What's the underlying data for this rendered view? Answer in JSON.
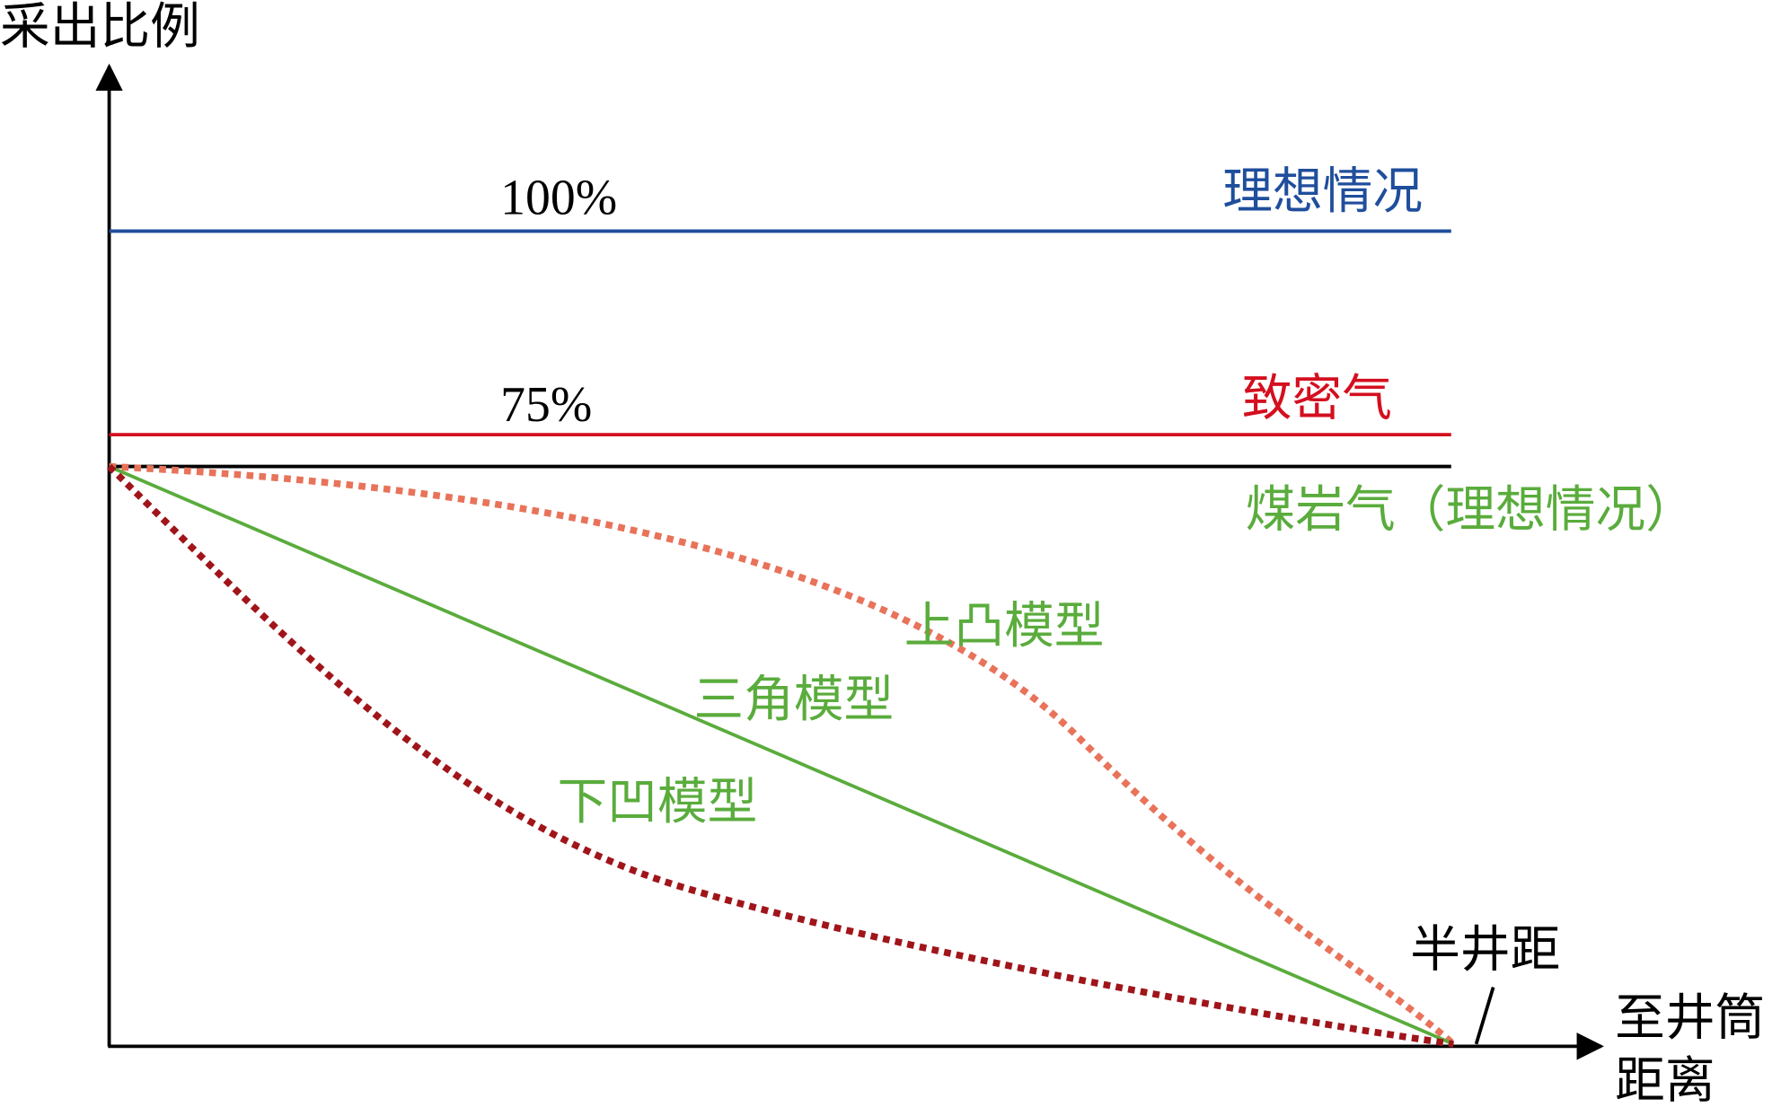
{
  "axes": {
    "y_label": "采出比例",
    "x_label_line1": "至井筒",
    "x_label_line2": "距离"
  },
  "lines": [
    {
      "label": "理想情况",
      "percent_label": "100%"
    },
    {
      "label": "致密气",
      "percent_label": "75%"
    },
    {
      "label": "煤岩气（理想情况）"
    }
  ],
  "models": [
    "上凸模型",
    "三角模型",
    "下凹模型"
  ],
  "annotation": "半井距"
}
